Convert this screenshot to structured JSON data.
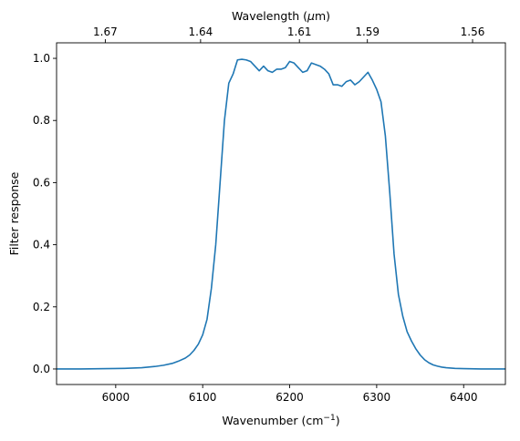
{
  "chart_data": {
    "type": "line",
    "xlabel": "Wavenumber (cm",
    "xlabel_sup": "−1",
    "xlabel_suffix": ")",
    "ylabel": "Filter response",
    "top_xlabel_prefix": "Wavelength (",
    "top_xlabel_mu": "μ",
    "top_xlabel_suffix": "m)",
    "xlim": [
      5932,
      6448
    ],
    "ylim": [
      -0.05,
      1.05
    ],
    "x_ticks": [
      6000,
      6100,
      6200,
      6300,
      6400
    ],
    "x_tick_labels": [
      "6000",
      "6100",
      "6200",
      "6300",
      "6400"
    ],
    "y_ticks": [
      0.0,
      0.2,
      0.4,
      0.6,
      0.8,
      1.0
    ],
    "y_tick_labels": [
      "0.0",
      "0.2",
      "0.4",
      "0.6",
      "0.8",
      "1.0"
    ],
    "top_ticks": [
      1.67,
      1.64,
      1.61,
      1.59,
      1.56
    ],
    "top_tick_labels": [
      "1.67",
      "1.64",
      "1.61",
      "1.59",
      "1.56"
    ],
    "grid": false,
    "line_color": "#1f77b4",
    "series": [
      {
        "x": [
          5932,
          5960,
          5990,
          6010,
          6030,
          6045,
          6055,
          6065,
          6072,
          6080,
          6085,
          6090,
          6095,
          6100,
          6105,
          6110,
          6115,
          6120,
          6125,
          6130,
          6135,
          6140,
          6145,
          6150,
          6155,
          6160,
          6165,
          6170,
          6175,
          6180,
          6185,
          6190,
          6195,
          6200,
          6205,
          6210,
          6215,
          6220,
          6225,
          6230,
          6235,
          6240,
          6245,
          6250,
          6255,
          6260,
          6265,
          6270,
          6275,
          6280,
          6285,
          6290,
          6295,
          6300,
          6305,
          6310,
          6315,
          6320,
          6325,
          6330,
          6335,
          6340,
          6345,
          6350,
          6355,
          6360,
          6365,
          6370,
          6375,
          6380,
          6390,
          6400,
          6420,
          6448
        ],
        "y": [
          0.0,
          0.0,
          0.001,
          0.002,
          0.004,
          0.008,
          0.012,
          0.018,
          0.025,
          0.035,
          0.045,
          0.06,
          0.08,
          0.11,
          0.16,
          0.26,
          0.4,
          0.6,
          0.8,
          0.92,
          0.95,
          0.995,
          0.997,
          0.995,
          0.99,
          0.975,
          0.96,
          0.975,
          0.96,
          0.955,
          0.965,
          0.965,
          0.97,
          0.99,
          0.985,
          0.97,
          0.955,
          0.96,
          0.985,
          0.98,
          0.975,
          0.965,
          0.95,
          0.915,
          0.915,
          0.91,
          0.925,
          0.93,
          0.915,
          0.925,
          0.94,
          0.955,
          0.93,
          0.9,
          0.86,
          0.75,
          0.57,
          0.37,
          0.24,
          0.17,
          0.12,
          0.09,
          0.065,
          0.045,
          0.03,
          0.02,
          0.013,
          0.009,
          0.006,
          0.004,
          0.002,
          0.001,
          0.0,
          0.0
        ]
      }
    ]
  }
}
